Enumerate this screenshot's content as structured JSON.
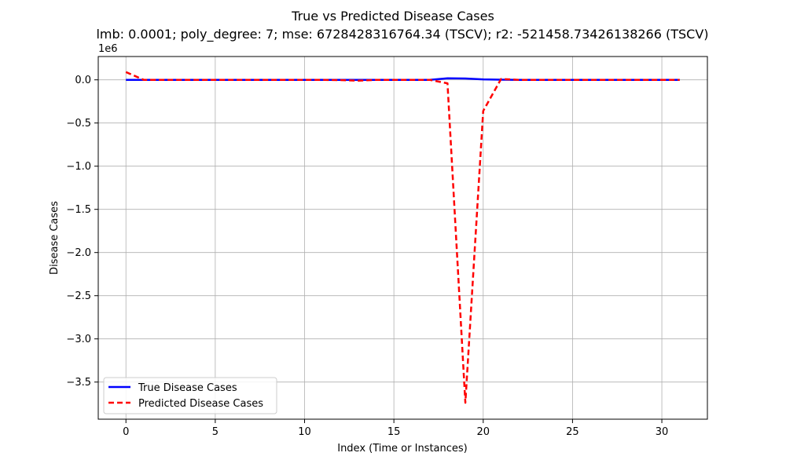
{
  "chart_data": {
    "type": "line",
    "title": "True vs Predicted Disease Cases",
    "subtitle": "lmb: 0.0001; poly_degree: 7; mse: 6728428316764.34 (TSCV); r2: -521458.73426138266 (TSCV)",
    "xlabel": "Index (Time or Instances)",
    "ylabel": "Disease Cases",
    "y_scale_label": "1e6",
    "xlim": [
      -1.55,
      32.55
    ],
    "ylim": [
      -3.93,
      0.27
    ],
    "x_ticks": [
      0,
      5,
      10,
      15,
      20,
      25,
      30
    ],
    "x_tick_labels": [
      "0",
      "5",
      "10",
      "15",
      "20",
      "25",
      "30"
    ],
    "y_ticks": [
      0.0,
      -0.5,
      -1.0,
      -1.5,
      -2.0,
      -2.5,
      -3.0,
      -3.5
    ],
    "y_tick_labels": [
      "0.0",
      "−0.5",
      "−1.0",
      "−1.5",
      "−2.0",
      "−2.5",
      "−3.0",
      "−3.5"
    ],
    "grid": true,
    "legend_position": "bottom-left",
    "x": [
      0,
      1,
      2,
      3,
      4,
      5,
      6,
      7,
      8,
      9,
      10,
      11,
      12,
      13,
      14,
      15,
      16,
      17,
      18,
      19,
      20,
      21,
      22,
      23,
      24,
      25,
      26,
      27,
      28,
      29,
      30,
      31
    ],
    "series": [
      {
        "name": "True Disease Cases",
        "color": "#0000ff",
        "style": "solid",
        "values": [
          0.0,
          0.0,
          0.0,
          0.0,
          0.0,
          0.0,
          0.0,
          0.0,
          0.0,
          0.0,
          0.0,
          0.0,
          0.0,
          0.0,
          0.0,
          0.0,
          0.0,
          0.0,
          0.018,
          0.015,
          0.005,
          0.002,
          0.0,
          0.0,
          0.0,
          0.0,
          0.0,
          0.0,
          0.0,
          0.0,
          0.0,
          0.0
        ]
      },
      {
        "name": "Predicted Disease Cases",
        "color": "#ff0000",
        "style": "dashed",
        "values": [
          0.09,
          0.0,
          0.0,
          0.0,
          0.0,
          0.0,
          0.0,
          0.0,
          0.0,
          0.0,
          0.0,
          0.0,
          -0.003,
          -0.01,
          0.0,
          0.0,
          0.0,
          0.0,
          -0.04,
          -3.74,
          -0.36,
          0.01,
          0.0,
          0.0,
          0.0,
          0.0,
          0.0,
          0.0,
          0.0,
          0.0,
          0.0,
          0.0
        ]
      }
    ]
  }
}
